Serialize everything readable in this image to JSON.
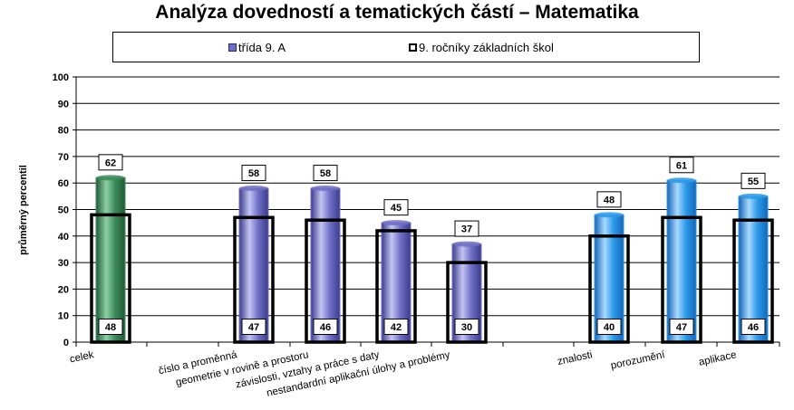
{
  "chart_data": {
    "type": "bar",
    "title": "Analýza dovedností a tematických částí – Matematika",
    "ylabel": "průměrný percentil",
    "xlabel": "",
    "ylim": [
      0,
      100
    ],
    "yticks": [
      0,
      10,
      20,
      30,
      40,
      50,
      60,
      70,
      80,
      90,
      100
    ],
    "grid": true,
    "legend_position": "top",
    "categories": [
      "celek",
      "číslo a proměnná",
      "geometrie v rovině a prostoru",
      "závislosti, vztahy a práce s daty",
      "nestandardní aplikační úlohy a problémy",
      "znalosti",
      "porozumění",
      "aplikace"
    ],
    "series": [
      {
        "name": "třída 9. A",
        "values": [
          62,
          58,
          58,
          45,
          37,
          48,
          61,
          55
        ]
      },
      {
        "name": "9. ročníky základních škol",
        "values": [
          48,
          47,
          46,
          42,
          30,
          40,
          47,
          46
        ]
      }
    ],
    "colors": {
      "celek": "#3d8a5a",
      "topics": "#6f6fc6",
      "skills": "#2b9ae8",
      "outline": "#000000",
      "grid": "#000000"
    }
  }
}
